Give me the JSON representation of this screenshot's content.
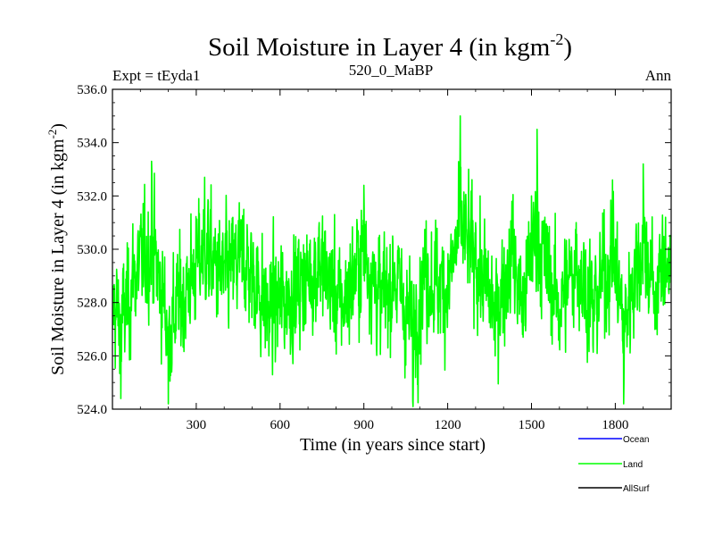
{
  "chart_data": {
    "type": "line",
    "title_main": "Soil Moisture in Layer 4 (in kgm",
    "title_sup": "-2",
    "title_close": ")",
    "subtitle_left": "Expt = tEyda1",
    "subtitle_center": "520_0_MaBP",
    "subtitle_right": "Ann",
    "xlabel": "Time (in years since start)",
    "ylabel_main": "Soil Moisture in Layer 4 (in kgm",
    "ylabel_sup": "-2",
    "ylabel_close": ")",
    "xlim": [
      0,
      2000
    ],
    "ylim": [
      524.0,
      536.0
    ],
    "xticks": [
      300,
      600,
      900,
      1200,
      1500,
      1800
    ],
    "xtick_labels": [
      "300",
      "600",
      "900",
      "1200",
      "1500",
      "1800"
    ],
    "yticks": [
      524.0,
      526.0,
      528.0,
      530.0,
      532.0,
      534.0,
      536.0
    ],
    "ytick_labels": [
      "524.0",
      "526.0",
      "528.0",
      "530.0",
      "532.0",
      "534.0",
      "536.0"
    ],
    "series": [
      {
        "name": "Land",
        "color": "#00ff00",
        "mean": 528.6,
        "x": [
          0,
          30,
          75,
          140,
          200,
          260,
          330,
          390,
          470,
          560,
          650,
          740,
          820,
          900,
          960,
          1010,
          1075,
          1120,
          1200,
          1245,
          1300,
          1370,
          1430,
          1470,
          1500,
          1520,
          1550,
          1600,
          1660,
          1720,
          1790,
          1830,
          1860,
          1900,
          1940,
          1980,
          2000
        ],
        "values": [
          527.0,
          524.4,
          529.2,
          533.3,
          524.2,
          528.0,
          532.7,
          529.4,
          531.5,
          526.0,
          528.0,
          531.0,
          526.4,
          532.4,
          527.0,
          529.5,
          524.3,
          530.0,
          528.2,
          535.0,
          531.0,
          526.0,
          531.8,
          526.7,
          532.0,
          534.5,
          530.5,
          526.5,
          531.0,
          526.4,
          532.6,
          524.2,
          529.0,
          533.2,
          528.0,
          531.2,
          530.0
        ]
      },
      {
        "name": "Ocean",
        "color": "#0000ff",
        "values": []
      },
      {
        "name": "AllSurf",
        "color": "#000000",
        "values": []
      }
    ],
    "legend": [
      {
        "name": "Ocean",
        "color": "#0000ff"
      },
      {
        "name": "Land",
        "color": "#00ff00"
      },
      {
        "name": "AllSurf",
        "color": "#000000"
      }
    ],
    "legend_position": "bottom-right",
    "grid": false
  }
}
